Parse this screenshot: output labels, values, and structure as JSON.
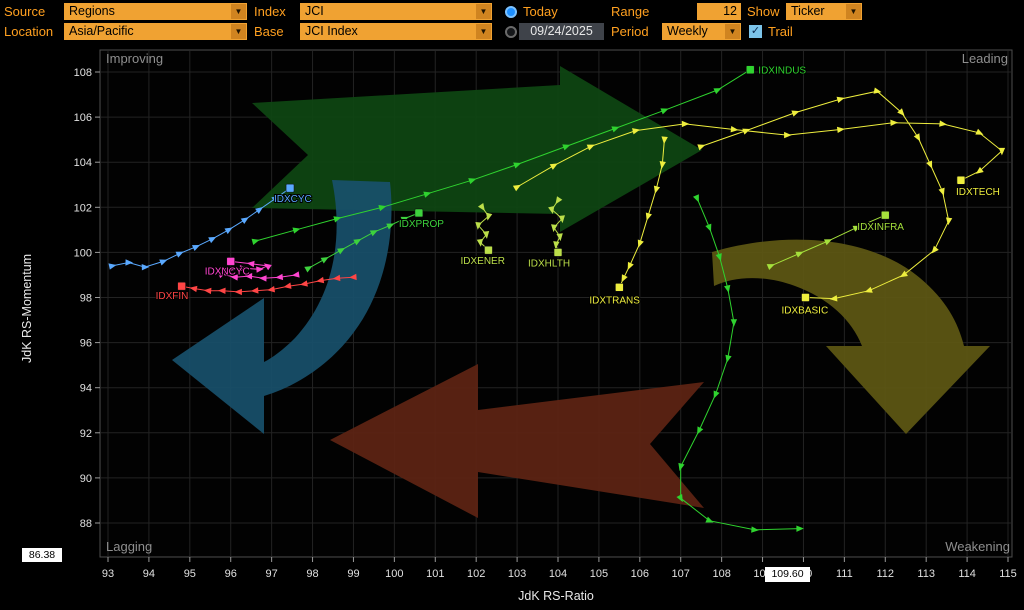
{
  "topbar": {
    "source_label": "Source",
    "source_value": "Regions",
    "index_label": "Index",
    "index_value": "JCI",
    "today_label": "Today",
    "range_label": "Range",
    "range_value": "12",
    "show_label": "Show",
    "show_value": "Ticker",
    "location_label": "Location",
    "location_value": "Asia/Pacific",
    "base_label": "Base",
    "base_value": "JCI Index",
    "date_value": "09/24/2025",
    "period_label": "Period",
    "period_value": "Weekly",
    "trail_label": "Trail"
  },
  "chart_data": {
    "type": "scatter",
    "title": "",
    "xlabel": "JdK RS-Ratio",
    "ylabel": "JdK RS-Momentum",
    "xlim": [
      92.8,
      115.3
    ],
    "ylim": [
      86.5,
      109.0
    ],
    "x_ticks": [
      93,
      94,
      95,
      96,
      97,
      98,
      99,
      100,
      101,
      102,
      103,
      104,
      105,
      106,
      107,
      108,
      109,
      110,
      111,
      112,
      113,
      114,
      115
    ],
    "y_ticks": [
      88,
      90,
      92,
      94,
      96,
      98,
      100,
      102,
      104,
      106,
      108
    ],
    "x_axis_marker": "109.60",
    "y_axis_marker": "86.38",
    "quadrants": {
      "top_left": "Improving",
      "top_right": "Leading",
      "bottom_left": "Lagging",
      "bottom_right": "Weakening"
    },
    "series": [
      {
        "name": "IDXCYC",
        "color": "#5aa9ff",
        "label_dx": -16,
        "label_dy": 14,
        "points": [
          [
            93.1,
            99.4
          ],
          [
            93.5,
            99.55
          ],
          [
            93.9,
            99.35
          ],
          [
            94.35,
            99.6
          ],
          [
            94.75,
            99.95
          ],
          [
            95.15,
            100.25
          ],
          [
            95.55,
            100.6
          ],
          [
            95.95,
            101.0
          ],
          [
            96.35,
            101.45
          ],
          [
            96.7,
            101.9
          ],
          [
            97.1,
            102.4
          ],
          [
            97.45,
            102.85
          ]
        ]
      },
      {
        "name": "IDXNCYC",
        "color": "#ff45d0",
        "label_dx": -26,
        "label_dy": 13,
        "points": [
          [
            97.6,
            99.0
          ],
          [
            97.2,
            98.9
          ],
          [
            96.8,
            98.85
          ],
          [
            96.45,
            98.95
          ],
          [
            96.1,
            98.9
          ],
          [
            95.75,
            99.05
          ],
          [
            95.95,
            99.2
          ],
          [
            96.3,
            99.3
          ],
          [
            96.7,
            99.25
          ],
          [
            96.9,
            99.4
          ],
          [
            96.5,
            99.5
          ],
          [
            96.0,
            99.6
          ]
        ]
      },
      {
        "name": "IDXFIN",
        "color": "#ff4545",
        "label_dx": -26,
        "label_dy": 13,
        "points": [
          [
            99.0,
            98.9
          ],
          [
            98.6,
            98.85
          ],
          [
            98.2,
            98.75
          ],
          [
            97.8,
            98.6
          ],
          [
            97.4,
            98.5
          ],
          [
            97.0,
            98.35
          ],
          [
            96.6,
            98.3
          ],
          [
            96.2,
            98.25
          ],
          [
            95.8,
            98.3
          ],
          [
            95.45,
            98.3
          ],
          [
            95.1,
            98.4
          ],
          [
            94.8,
            98.5
          ]
        ]
      },
      {
        "name": "IDXPROP",
        "color": "#3dd23d",
        "label_dx": -20,
        "label_dy": 14,
        "points": [
          [
            97.9,
            99.3
          ],
          [
            98.3,
            99.7
          ],
          [
            98.7,
            100.1
          ],
          [
            99.1,
            100.5
          ],
          [
            99.5,
            100.9
          ],
          [
            99.9,
            101.2
          ],
          [
            100.25,
            101.5
          ],
          [
            100.6,
            101.75
          ]
        ]
      },
      {
        "name": "IDXENER",
        "color": "#bcdf4a",
        "label_dx": -28,
        "label_dy": 14,
        "points": [
          [
            102.15,
            102.0
          ],
          [
            102.3,
            101.6
          ],
          [
            102.05,
            101.2
          ],
          [
            102.25,
            100.8
          ],
          [
            102.1,
            100.45
          ],
          [
            102.3,
            100.1
          ]
        ]
      },
      {
        "name": "IDXHLTH",
        "color": "#bcdf4a",
        "label_dx": -30,
        "label_dy": 14,
        "points": [
          [
            104.0,
            102.3
          ],
          [
            103.85,
            101.9
          ],
          [
            104.1,
            101.5
          ],
          [
            103.9,
            101.1
          ],
          [
            104.05,
            100.7
          ],
          [
            103.95,
            100.35
          ],
          [
            104.0,
            100.0
          ]
        ]
      },
      {
        "name": "IDXTRANS",
        "color": "#eeee3e",
        "label_dx": -30,
        "label_dy": 16,
        "points": [
          [
            106.6,
            105.0
          ],
          [
            106.55,
            103.9
          ],
          [
            106.4,
            102.8
          ],
          [
            106.2,
            101.6
          ],
          [
            106.0,
            100.4
          ],
          [
            105.75,
            99.4
          ],
          [
            105.6,
            98.85
          ],
          [
            105.5,
            98.45
          ]
        ]
      },
      {
        "name": "IDXBASIC",
        "color": "#eeee3e",
        "label_dx": -24,
        "label_dy": 16,
        "points": [
          [
            107.5,
            104.7
          ],
          [
            108.6,
            105.4
          ],
          [
            109.8,
            106.2
          ],
          [
            110.9,
            106.8
          ],
          [
            111.8,
            107.15
          ],
          [
            112.4,
            106.2
          ],
          [
            112.8,
            105.1
          ],
          [
            113.1,
            103.9
          ],
          [
            113.4,
            102.7
          ],
          [
            113.55,
            101.4
          ],
          [
            113.2,
            100.1
          ],
          [
            112.45,
            99.0
          ],
          [
            111.6,
            98.3
          ],
          [
            110.75,
            97.95
          ],
          [
            110.05,
            98.0
          ]
        ]
      },
      {
        "name": "IDXINFRA",
        "color": "#a5e03c",
        "label_dx": -28,
        "label_dy": 15,
        "points": [
          [
            109.2,
            99.4
          ],
          [
            109.9,
            99.95
          ],
          [
            110.6,
            100.5
          ],
          [
            111.3,
            101.1
          ],
          [
            112.0,
            101.65
          ]
        ]
      },
      {
        "name": "IDXTECH",
        "color": "#eeee3e",
        "label_dx": -5,
        "label_dy": 15,
        "points": [
          [
            103.0,
            102.9
          ],
          [
            103.9,
            103.85
          ],
          [
            104.8,
            104.7
          ],
          [
            105.9,
            105.4
          ],
          [
            107.1,
            105.7
          ],
          [
            108.3,
            105.45
          ],
          [
            109.6,
            105.2
          ],
          [
            110.9,
            105.45
          ],
          [
            112.2,
            105.75
          ],
          [
            113.4,
            105.7
          ],
          [
            114.3,
            105.3
          ],
          [
            114.85,
            104.5
          ],
          [
            114.3,
            103.6
          ],
          [
            113.85,
            103.2
          ]
        ]
      },
      {
        "name": "IDXINDUS",
        "color": "#2fd32f",
        "label_dx": 8,
        "label_dy": 4,
        "points": [
          [
            96.6,
            100.5
          ],
          [
            97.6,
            101.0
          ],
          [
            98.6,
            101.5
          ],
          [
            99.7,
            102.0
          ],
          [
            100.8,
            102.6
          ],
          [
            101.9,
            103.2
          ],
          [
            103.0,
            103.9
          ],
          [
            104.2,
            104.7
          ],
          [
            105.4,
            105.5
          ],
          [
            106.6,
            106.3
          ],
          [
            107.9,
            107.2
          ],
          [
            108.7,
            108.1
          ]
        ]
      },
      {
        "name": "",
        "color": "#2fd32f",
        "label_dx": 0,
        "label_dy": 0,
        "points": [
          [
            107.4,
            102.4
          ],
          [
            107.7,
            101.1
          ],
          [
            107.95,
            99.8
          ],
          [
            108.15,
            98.4
          ],
          [
            108.3,
            96.9
          ],
          [
            108.15,
            95.3
          ],
          [
            107.85,
            93.7
          ],
          [
            107.45,
            92.1
          ],
          [
            107.0,
            90.5
          ],
          [
            107.0,
            89.1
          ],
          [
            107.7,
            88.1
          ],
          [
            108.8,
            87.7
          ],
          [
            109.9,
            87.75
          ]
        ]
      }
    ]
  }
}
